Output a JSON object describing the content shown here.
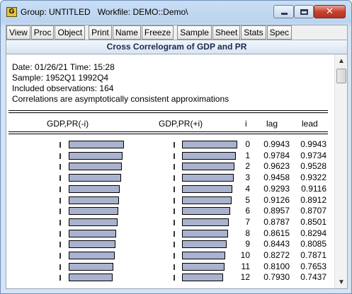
{
  "window": {
    "app_icon_letter": "G",
    "title": "Group: UNTITLED   Workfile: DEMO::Demo\\",
    "close_glyph": "✕"
  },
  "toolbar": {
    "buttons": [
      "View",
      "Proc",
      "Object",
      "Print",
      "Name",
      "Freeze",
      "Sample",
      "Sheet",
      "Stats",
      "Spec"
    ]
  },
  "view_title": "Cross Correlogram of GDP and PR",
  "info": {
    "date_line": "Date: 01/26/21   Time: 15:28",
    "sample_line": "Sample: 1952Q1 1992Q4",
    "obs_line": "Included observations: 164",
    "note_line": "Correlations are asymptotically consistent approximations"
  },
  "columns": {
    "lag_corr": "GDP,PR(-i)",
    "lead_corr": "GDP,PR(+i)",
    "i": "i",
    "lag": "lag",
    "lead": "lead"
  },
  "rows": [
    {
      "i": "0",
      "lag": "0.9943",
      "lead": "0.9943"
    },
    {
      "i": "1",
      "lag": "0.9784",
      "lead": "0.9734"
    },
    {
      "i": "2",
      "lag": "0.9623",
      "lead": "0.9528"
    },
    {
      "i": "3",
      "lag": "0.9458",
      "lead": "0.9322"
    },
    {
      "i": "4",
      "lag": "0.9293",
      "lead": "0.9116"
    },
    {
      "i": "5",
      "lag": "0.9126",
      "lead": "0.8912"
    },
    {
      "i": "6",
      "lag": "0.8957",
      "lead": "0.8707"
    },
    {
      "i": "7",
      "lag": "0.8787",
      "lead": "0.8501"
    },
    {
      "i": "8",
      "lag": "0.8615",
      "lead": "0.8294"
    },
    {
      "i": "9",
      "lag": "0.8443",
      "lead": "0.8085"
    },
    {
      "i": "10",
      "lag": "0.8272",
      "lead": "0.7871"
    },
    {
      "i": "11",
      "lag": "0.8100",
      "lead": "0.7653"
    },
    {
      "i": "12",
      "lag": "0.7930",
      "lead": "0.7437"
    }
  ],
  "scrollbar": {
    "up_glyph": "▲",
    "down_glyph": "▼"
  }
}
